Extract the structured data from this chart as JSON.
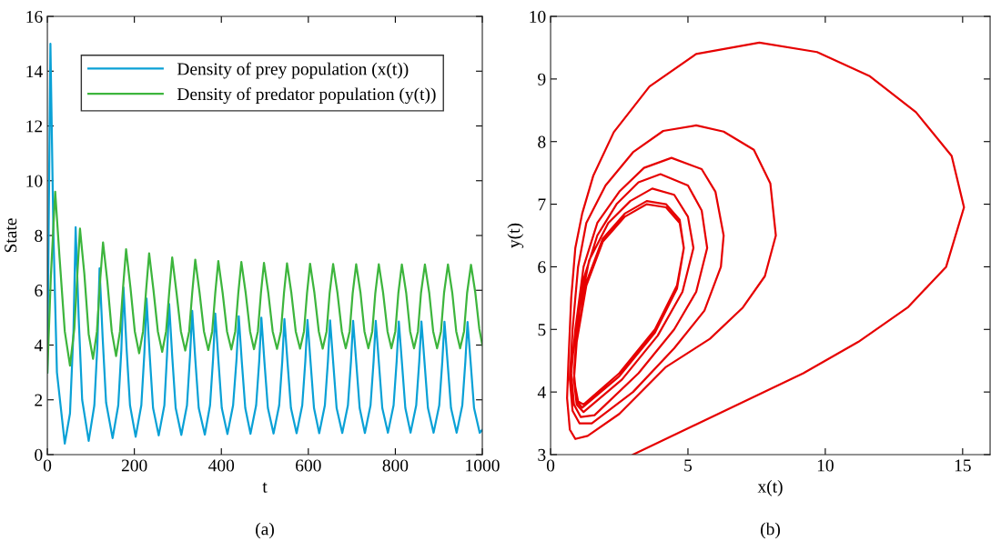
{
  "chart_data": [
    {
      "type": "line",
      "xlabel": "t",
      "ylabel": "State",
      "xlim": [
        0,
        1000
      ],
      "ylim": [
        0,
        16
      ],
      "xticks": [
        0,
        200,
        400,
        600,
        800,
        1000
      ],
      "yticks": [
        0,
        2,
        4,
        6,
        8,
        10,
        12,
        14,
        16
      ],
      "legend": "top right",
      "annotations": [
        "(a)"
      ],
      "series": [
        {
          "name": "Density of prey population (x(t))",
          "color": "#0aa1d6",
          "x": [
            0,
            4,
            7,
            10,
            14,
            22,
            40,
            52,
            60,
            65,
            72,
            80,
            95,
            108,
            115,
            120,
            127,
            135,
            150,
            163,
            170,
            175,
            182,
            190,
            203,
            216,
            223,
            228,
            235,
            243,
            256,
            269,
            275,
            280,
            287,
            295,
            308,
            321,
            328,
            333,
            340,
            348,
            362,
            374,
            381,
            386,
            393,
            401,
            414,
            427,
            435,
            440,
            447,
            455,
            467,
            480,
            487,
            492,
            499,
            507,
            520,
            533,
            540,
            545,
            552,
            560,
            573,
            586,
            593,
            598,
            605,
            613,
            625,
            638,
            645,
            650,
            657,
            665,
            678,
            691,
            698,
            703,
            710,
            718,
            730,
            743,
            750,
            755,
            762,
            770,
            783,
            796,
            803,
            808,
            815,
            823,
            835,
            848,
            855,
            860,
            867,
            875,
            888,
            901,
            908,
            913,
            920,
            928,
            941,
            954,
            961,
            966,
            973,
            981,
            994,
            1000
          ],
          "values": [
            3,
            10,
            15.0,
            12,
            8,
            3,
            0.4,
            1.5,
            4.5,
            8.3,
            5,
            2,
            0.5,
            1.8,
            4,
            6.8,
            4.3,
            1.9,
            0.6,
            1.8,
            3.8,
            6.1,
            3.9,
            1.8,
            0.65,
            1.8,
            3.7,
            5.7,
            3.7,
            1.7,
            0.7,
            1.8,
            3.6,
            5.5,
            3.6,
            1.7,
            0.72,
            1.8,
            3.6,
            5.25,
            3.5,
            1.7,
            0.73,
            1.8,
            3.5,
            5.15,
            3.5,
            1.7,
            0.75,
            1.8,
            3.5,
            5.05,
            3.4,
            1.7,
            0.76,
            1.8,
            3.4,
            5.0,
            3.4,
            1.7,
            0.77,
            1.8,
            3.4,
            4.95,
            3.4,
            1.7,
            0.78,
            1.8,
            3.4,
            4.92,
            3.4,
            1.7,
            0.78,
            1.8,
            3.4,
            4.9,
            3.4,
            1.7,
            0.79,
            1.8,
            3.4,
            4.88,
            3.4,
            1.7,
            0.79,
            1.8,
            3.4,
            4.88,
            3.4,
            1.7,
            0.8,
            1.8,
            3.4,
            4.86,
            3.4,
            1.7,
            0.8,
            1.8,
            3.4,
            4.86,
            3.4,
            1.7,
            0.8,
            1.8,
            3.4,
            4.85,
            3.4,
            1.7,
            0.8,
            1.8,
            3.4,
            4.84,
            3.4,
            1.7,
            0.8,
            0.9
          ]
        },
        {
          "name": "Density of predator population (y(t))",
          "color": "#3db53d",
          "x": [
            0,
            8,
            18,
            28,
            40,
            52,
            62,
            69,
            75,
            85,
            95,
            105,
            114,
            121,
            128,
            138,
            148,
            158,
            167,
            174,
            181,
            191,
            201,
            211,
            220,
            227,
            234,
            244,
            254,
            264,
            273,
            280,
            287,
            297,
            307,
            317,
            326,
            333,
            340,
            350,
            360,
            370,
            379,
            386,
            393,
            403,
            413,
            423,
            432,
            439,
            446,
            456,
            466,
            475,
            484,
            491,
            498,
            508,
            518,
            528,
            537,
            544,
            551,
            561,
            571,
            581,
            590,
            597,
            604,
            614,
            624,
            633,
            642,
            649,
            657,
            667,
            677,
            686,
            695,
            702,
            710,
            720,
            729,
            738,
            747,
            754,
            762,
            772,
            782,
            791,
            800,
            807,
            815,
            825,
            834,
            843,
            852,
            859,
            868,
            878,
            887,
            896,
            905,
            912,
            921,
            931,
            940,
            949,
            958,
            965,
            974,
            984,
            993,
            1000
          ],
          "values": [
            3,
            6.5,
            9.6,
            7.2,
            4.5,
            3.25,
            4.6,
            6.6,
            8.25,
            6.6,
            4.4,
            3.5,
            4.5,
            6.3,
            7.75,
            6.3,
            4.5,
            3.6,
            4.5,
            6.1,
            7.5,
            6.1,
            4.5,
            3.7,
            4.5,
            6.0,
            7.35,
            6.0,
            4.5,
            3.75,
            4.5,
            5.9,
            7.2,
            5.9,
            4.5,
            3.8,
            4.5,
            5.9,
            7.12,
            5.9,
            4.5,
            3.82,
            4.5,
            5.9,
            7.07,
            5.9,
            4.5,
            3.84,
            4.5,
            5.9,
            7.03,
            5.9,
            4.5,
            3.85,
            4.5,
            5.9,
            7.0,
            5.9,
            4.5,
            3.86,
            4.5,
            5.9,
            6.98,
            5.9,
            4.5,
            3.87,
            4.5,
            5.9,
            6.97,
            5.9,
            4.5,
            3.87,
            4.5,
            5.9,
            6.96,
            5.9,
            4.5,
            3.88,
            4.5,
            5.9,
            6.95,
            5.9,
            4.5,
            3.88,
            4.5,
            5.9,
            6.95,
            5.9,
            4.5,
            3.88,
            4.5,
            5.9,
            6.94,
            5.9,
            4.5,
            3.88,
            4.5,
            5.9,
            6.94,
            5.9,
            4.5,
            3.88,
            4.5,
            5.9,
            6.94,
            5.9,
            4.5,
            3.88,
            4.5,
            5.9,
            6.93,
            5.9,
            4.6,
            4.0
          ]
        }
      ]
    },
    {
      "type": "line",
      "xlabel": "x(t)",
      "ylabel": "y(t)",
      "xlim": [
        0,
        16
      ],
      "ylim": [
        3,
        10
      ],
      "xticks": [
        0,
        5,
        10,
        15
      ],
      "yticks": [
        3,
        4,
        5,
        6,
        7,
        8,
        9,
        10
      ],
      "annotations": [
        "(b)"
      ],
      "series": [
        {
          "color": "#e60000",
          "x": [
            3,
            9.2,
            11.2,
            13,
            14.4,
            15.05,
            14.6,
            13.3,
            11.6,
            9.7,
            7.6,
            5.3,
            3.6,
            2.3,
            1.55,
            1.15,
            0.9,
            0.75,
            0.65,
            0.6,
            0.7,
            0.9,
            1.35,
            2.5,
            4.2,
            5.8,
            7.0,
            7.8,
            8.2,
            8.0,
            7.4,
            6.3,
            5.3,
            4.1,
            3.0,
            2.0,
            1.3,
            1.0,
            0.8,
            0.7,
            0.8,
            1.05,
            1.5,
            3.0,
            4.5,
            5.6,
            6.2,
            6.3,
            6.0,
            5.5,
            4.4,
            3.4,
            2.5,
            1.7,
            1.2,
            0.9,
            0.75,
            0.85,
            1.1,
            1.6,
            3.2,
            4.5,
            5.3,
            5.7,
            5.5,
            5.0,
            4.0,
            3.2,
            2.4,
            1.7,
            1.2,
            0.95,
            0.85,
            0.95,
            1.2,
            2.6,
            3.9,
            4.8,
            5.2,
            5.0,
            4.5,
            3.7,
            2.9,
            2.1,
            1.4,
            1.0,
            0.85,
            0.95,
            1.15,
            2.5,
            3.8,
            4.6,
            4.85,
            4.7,
            4.2,
            3.5,
            2.7,
            1.9,
            1.3,
            0.95,
            0.85,
            1.0,
            1.2,
            2.5,
            3.8,
            4.6,
            4.85,
            4.7,
            4.2,
            3.5,
            2.7,
            1.9,
            1.3,
            0.95,
            0.85,
            1.0
          ],
          "values": [
            3,
            4.3,
            4.8,
            5.35,
            6.0,
            6.95,
            7.77,
            8.47,
            9.05,
            9.43,
            9.58,
            9.4,
            8.88,
            8.15,
            7.45,
            6.85,
            6.3,
            5.5,
            4.5,
            3.9,
            3.4,
            3.25,
            3.3,
            3.65,
            4.4,
            4.85,
            5.35,
            5.85,
            6.5,
            7.33,
            7.87,
            8.16,
            8.26,
            8.17,
            7.83,
            7.3,
            6.7,
            6.0,
            5.0,
            4.2,
            3.7,
            3.5,
            3.5,
            4.0,
            4.7,
            5.3,
            6.0,
            6.5,
            7.2,
            7.56,
            7.74,
            7.58,
            7.2,
            6.7,
            6.0,
            5.0,
            4.3,
            3.8,
            3.6,
            3.63,
            4.3,
            5.0,
            5.6,
            6.3,
            6.9,
            7.3,
            7.48,
            7.35,
            7.0,
            6.5,
            5.8,
            5.0,
            4.2,
            3.8,
            3.68,
            4.2,
            4.9,
            5.6,
            6.3,
            6.8,
            7.15,
            7.25,
            7.05,
            6.7,
            6.1,
            5.2,
            4.3,
            3.85,
            3.75,
            4.25,
            4.95,
            5.65,
            6.3,
            6.75,
            7.0,
            7.05,
            6.85,
            6.45,
            5.75,
            4.85,
            4.2,
            3.85,
            3.8,
            4.3,
            5.0,
            5.7,
            6.3,
            6.7,
            6.95,
            7.0,
            6.8,
            6.4,
            5.7,
            4.8,
            4.2,
            3.85
          ]
        }
      ]
    }
  ]
}
